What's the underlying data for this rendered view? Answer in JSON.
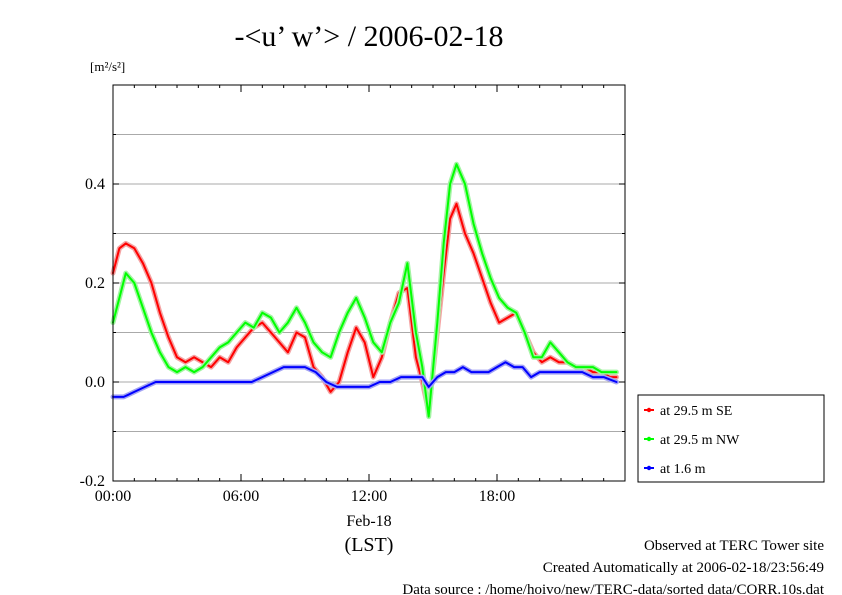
{
  "chart_data": {
    "type": "line",
    "title": "-<u’ w’> / 2006-02-18",
    "ylabel": "[m²/s²]",
    "x_date_label": "Feb-18",
    "xlabel": "(LST)",
    "ylim": [
      -0.2,
      0.6
    ],
    "xlim_hours": [
      0,
      24
    ],
    "y_ticks": [
      -0.2,
      0.0,
      0.2,
      0.4
    ],
    "y_tick_labels": [
      "-0.2",
      "0.0",
      "0.2",
      "0.4"
    ],
    "x_ticks_hours": [
      0,
      6,
      12,
      18
    ],
    "x_tick_labels": [
      "00:00",
      "06:00",
      "12:00",
      "18:00"
    ],
    "grid": true,
    "legend_position": "right",
    "series": [
      {
        "name": "at 29.5 m SE",
        "color": "#ff0000",
        "x": [
          0,
          0.3,
          0.6,
          1.0,
          1.4,
          1.8,
          2.2,
          2.6,
          3.0,
          3.4,
          3.8,
          4.2,
          4.6,
          5.0,
          5.4,
          5.8,
          6.2,
          6.6,
          7.0,
          7.4,
          7.8,
          8.2,
          8.6,
          9.0,
          9.4,
          9.8,
          10.2,
          10.6,
          11.0,
          11.4,
          11.8,
          12.2,
          12.6,
          13.0,
          13.4,
          13.8,
          14.2,
          14.5,
          14.8,
          15.2,
          15.5,
          15.8,
          16.1,
          16.5,
          16.9,
          17.3,
          17.7,
          18.1,
          18.5,
          18.9,
          19.3,
          19.7,
          20.1,
          20.5,
          20.9,
          21.3,
          21.7,
          22.1,
          22.5,
          22.9,
          23.3,
          23.6
        ],
        "y": [
          0.22,
          0.27,
          0.28,
          0.27,
          0.24,
          0.2,
          0.14,
          0.09,
          0.05,
          0.04,
          0.05,
          0.04,
          0.03,
          0.05,
          0.04,
          0.07,
          0.09,
          0.11,
          0.12,
          0.1,
          0.08,
          0.06,
          0.1,
          0.09,
          0.03,
          0.01,
          -0.02,
          0.0,
          0.06,
          0.11,
          0.08,
          0.01,
          0.05,
          0.12,
          0.18,
          0.19,
          0.05,
          0.0,
          -0.06,
          0.1,
          0.22,
          0.33,
          0.36,
          0.3,
          0.26,
          0.21,
          0.16,
          0.12,
          0.13,
          0.14,
          0.1,
          0.06,
          0.04,
          0.05,
          0.04,
          0.04,
          0.03,
          0.03,
          0.02,
          0.02,
          0.01,
          0.01
        ]
      },
      {
        "name": "at 29.5 m NW",
        "color": "#00ff00",
        "x": [
          0,
          0.3,
          0.6,
          1.0,
          1.4,
          1.8,
          2.2,
          2.6,
          3.0,
          3.4,
          3.8,
          4.2,
          4.6,
          5.0,
          5.4,
          5.8,
          6.2,
          6.6,
          7.0,
          7.4,
          7.8,
          8.2,
          8.6,
          9.0,
          9.4,
          9.8,
          10.2,
          10.6,
          11.0,
          11.4,
          11.8,
          12.2,
          12.6,
          13.0,
          13.4,
          13.8,
          14.2,
          14.5,
          14.8,
          15.2,
          15.5,
          15.8,
          16.1,
          16.5,
          16.9,
          17.3,
          17.7,
          18.1,
          18.5,
          18.9,
          19.3,
          19.7,
          20.1,
          20.5,
          20.9,
          21.3,
          21.7,
          22.1,
          22.5,
          22.9,
          23.3,
          23.6
        ],
        "y": [
          0.12,
          0.17,
          0.22,
          0.2,
          0.15,
          0.1,
          0.06,
          0.03,
          0.02,
          0.03,
          0.02,
          0.03,
          0.05,
          0.07,
          0.08,
          0.1,
          0.12,
          0.11,
          0.14,
          0.13,
          0.1,
          0.12,
          0.15,
          0.12,
          0.08,
          0.06,
          0.05,
          0.1,
          0.14,
          0.17,
          0.13,
          0.08,
          0.06,
          0.12,
          0.16,
          0.24,
          0.1,
          0.03,
          -0.07,
          0.12,
          0.28,
          0.4,
          0.44,
          0.4,
          0.32,
          0.26,
          0.21,
          0.17,
          0.15,
          0.14,
          0.1,
          0.05,
          0.05,
          0.08,
          0.06,
          0.04,
          0.03,
          0.03,
          0.03,
          0.02,
          0.02,
          0.02
        ]
      },
      {
        "name": "at 1.6 m",
        "color": "#0000ff",
        "x": [
          0,
          0.5,
          1.0,
          1.5,
          2.0,
          2.5,
          3.0,
          3.5,
          4.0,
          4.5,
          5.0,
          5.5,
          6.0,
          6.5,
          7.0,
          7.5,
          8.0,
          8.5,
          9.0,
          9.5,
          10.0,
          10.5,
          11.0,
          11.5,
          12.0,
          12.5,
          13.0,
          13.5,
          14.0,
          14.5,
          14.8,
          15.2,
          15.6,
          16.0,
          16.4,
          16.8,
          17.2,
          17.6,
          18.0,
          18.4,
          18.8,
          19.2,
          19.6,
          20.0,
          20.5,
          21.0,
          21.5,
          22.0,
          22.5,
          23.0,
          23.6
        ],
        "y": [
          -0.03,
          -0.03,
          -0.02,
          -0.01,
          0.0,
          0.0,
          0.0,
          0.0,
          0.0,
          0.0,
          0.0,
          0.0,
          0.0,
          0.0,
          0.01,
          0.02,
          0.03,
          0.03,
          0.03,
          0.02,
          0.0,
          -0.01,
          -0.01,
          -0.01,
          -0.01,
          0.0,
          0.0,
          0.01,
          0.01,
          0.01,
          -0.01,
          0.01,
          0.02,
          0.02,
          0.03,
          0.02,
          0.02,
          0.02,
          0.03,
          0.04,
          0.03,
          0.03,
          0.01,
          0.02,
          0.02,
          0.02,
          0.02,
          0.02,
          0.01,
          0.01,
          0.0
        ]
      }
    ]
  },
  "footer": {
    "line1": "Observed at TERC Tower site",
    "line2": "Created Automatically at 2006-02-18/23:56:49",
    "line3": "Data source : /home/hoivo/new/TERC-data/sorted  data/CORR.10s.dat"
  }
}
